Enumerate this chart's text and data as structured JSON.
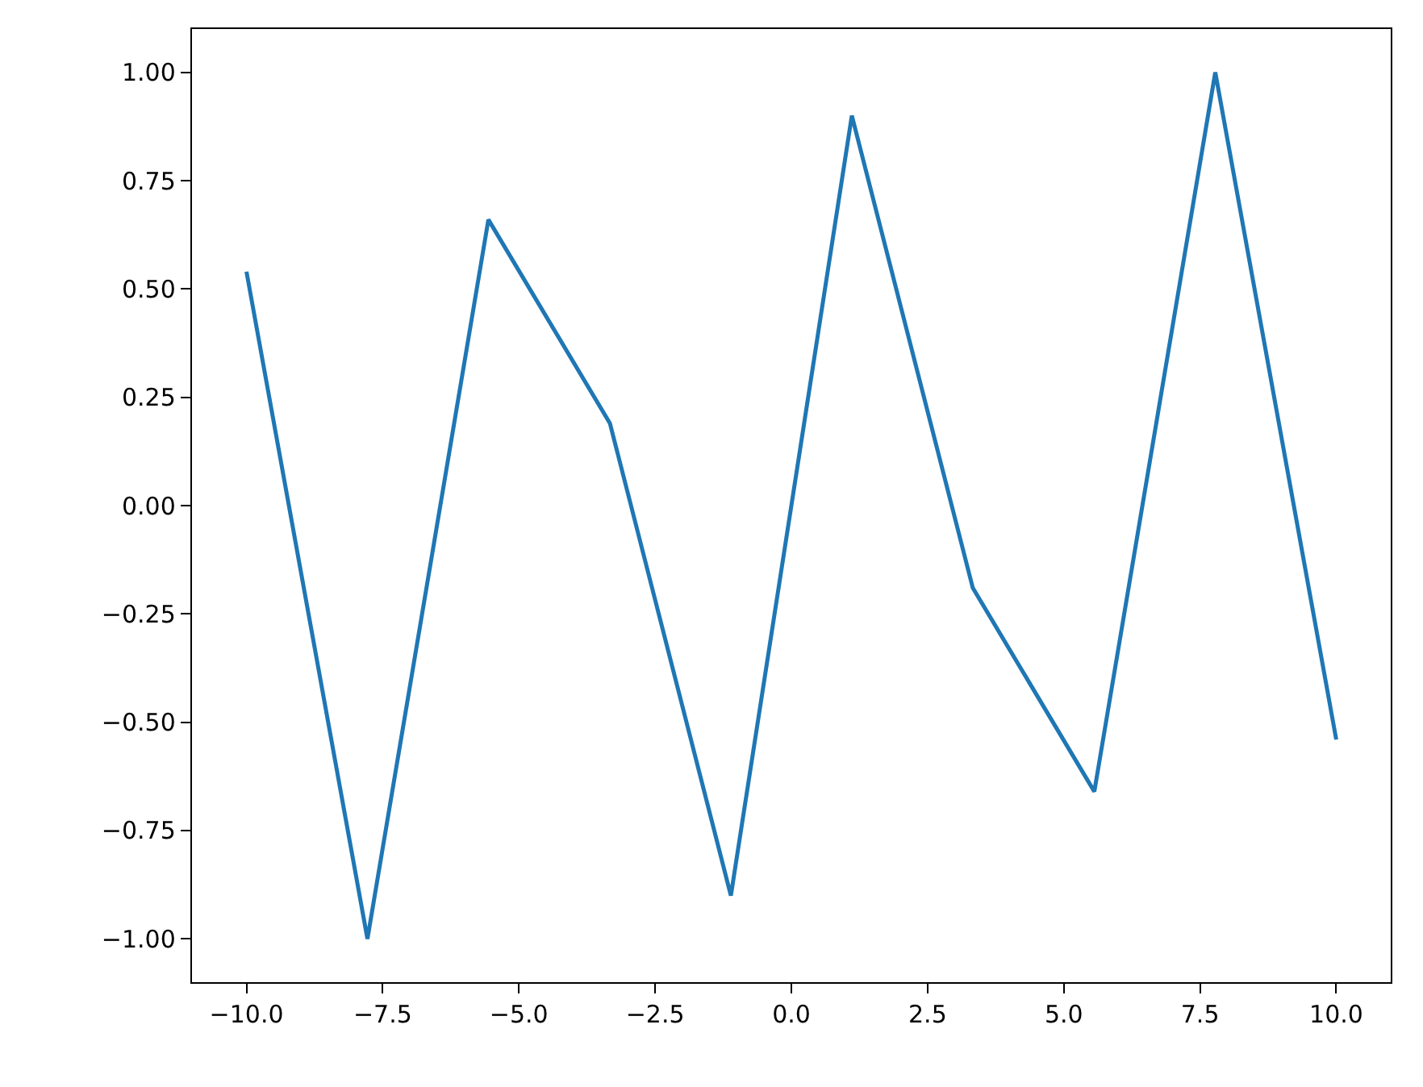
{
  "chart_data": {
    "type": "line",
    "x": [
      -10,
      -7.78,
      -5.56,
      -3.33,
      -1.11,
      1.11,
      3.33,
      5.56,
      7.78,
      10
    ],
    "series": [
      {
        "color": "#1f77b4",
        "values": [
          0.54,
          -1.0,
          0.66,
          0.19,
          -0.9,
          0.9,
          -0.19,
          -0.66,
          1.0,
          -0.54
        ]
      }
    ],
    "xlim": [
      -11,
      11
    ],
    "ylim": [
      -1.1,
      1.1
    ],
    "xticks": [
      {
        "value": -10,
        "label": "−10.0"
      },
      {
        "value": -7.5,
        "label": "−7.5"
      },
      {
        "value": -5,
        "label": "−5.0"
      },
      {
        "value": -2.5,
        "label": "−2.5"
      },
      {
        "value": 0,
        "label": "0.0"
      },
      {
        "value": 2.5,
        "label": "2.5"
      },
      {
        "value": 5,
        "label": "5.0"
      },
      {
        "value": 7.5,
        "label": "7.5"
      },
      {
        "value": 10,
        "label": "10.0"
      }
    ],
    "yticks": [
      {
        "value": -1,
        "label": "−1.00"
      },
      {
        "value": -0.75,
        "label": "−0.75"
      },
      {
        "value": -0.5,
        "label": "−0.50"
      },
      {
        "value": -0.25,
        "label": "−0.25"
      },
      {
        "value": 0,
        "label": "0.00"
      },
      {
        "value": 0.25,
        "label": "0.25"
      },
      {
        "value": 0.5,
        "label": "0.50"
      },
      {
        "value": 0.75,
        "label": "0.75"
      },
      {
        "value": 1,
        "label": "1.00"
      }
    ],
    "marker": "none"
  }
}
